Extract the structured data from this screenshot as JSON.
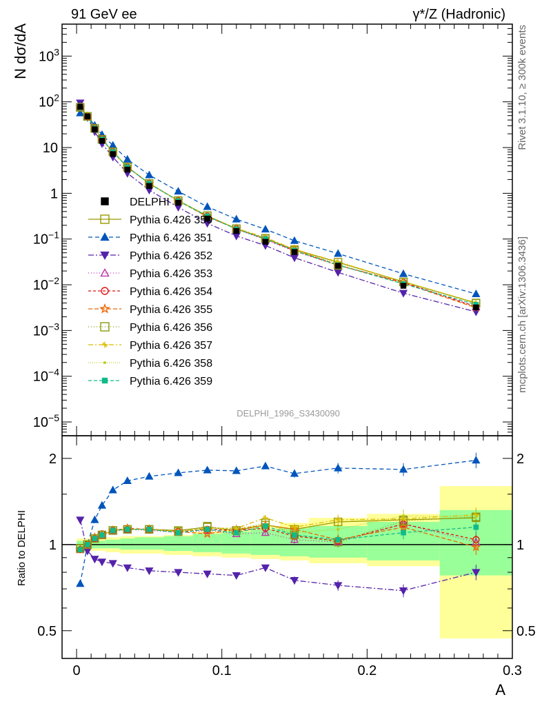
{
  "header": {
    "left": "91 GeV ee",
    "right": "γ*/Z (Hadronic)"
  },
  "side_text": {
    "top": "Rivet 3.1.10, ≥ 300k events",
    "bottom": "mcplots.cern.ch [arXiv:1306.3436]"
  },
  "analysis_label": "DELPHI_1996_S3430090",
  "chart_data": {
    "type": "scatter",
    "top_panel": {
      "ylabel": "N dσ/dA",
      "yscale": "log",
      "ylim": [
        5e-06,
        5000
      ],
      "ytick_labels": [
        "10^-5",
        "10^-4",
        "10^-3",
        "10^-2",
        "10^-1",
        "1",
        "10",
        "10^2",
        "10^3"
      ]
    },
    "ratio_panel": {
      "ylabel": "Ratio to DELPHI",
      "yscale": "log",
      "ylim": [
        0.4,
        2.4
      ],
      "ytick_labels": [
        "0.5",
        "1",
        "2"
      ],
      "reference_line": 1
    },
    "x": {
      "label": "A",
      "xlim": [
        -0.01,
        0.3
      ],
      "tick_labels": [
        "0",
        "0.1",
        "0.2",
        "0.3"
      ],
      "bin_centers": [
        0.0025,
        0.0075,
        0.0125,
        0.0175,
        0.025,
        0.035,
        0.05,
        0.07,
        0.09,
        0.11,
        0.13,
        0.15,
        0.18,
        0.225,
        0.275
      ],
      "bin_edges": [
        0,
        0.005,
        0.01,
        0.015,
        0.02,
        0.03,
        0.04,
        0.06,
        0.08,
        0.1,
        0.12,
        0.14,
        0.16,
        0.2,
        0.25,
        0.3
      ]
    },
    "data": {
      "name": "DELPHI",
      "values": [
        78,
        48,
        25,
        14,
        7.2,
        3.3,
        1.45,
        0.62,
        0.28,
        0.15,
        0.087,
        0.052,
        0.026,
        0.0095,
        0.0032
      ]
    },
    "uncertainty_band": {
      "inner_low": [
        0.97,
        0.97,
        0.97,
        0.97,
        0.97,
        0.96,
        0.96,
        0.95,
        0.94,
        0.93,
        0.92,
        0.91,
        0.9,
        0.88,
        0.78
      ],
      "inner_high": [
        1.03,
        1.03,
        1.03,
        1.03,
        1.04,
        1.05,
        1.06,
        1.07,
        1.09,
        1.11,
        1.13,
        1.14,
        1.16,
        1.2,
        1.32
      ],
      "outer_low": [
        0.95,
        0.95,
        0.95,
        0.95,
        0.94,
        0.93,
        0.93,
        0.92,
        0.91,
        0.9,
        0.89,
        0.88,
        0.86,
        0.84,
        0.47
      ],
      "outer_high": [
        1.05,
        1.05,
        1.05,
        1.05,
        1.06,
        1.07,
        1.07,
        1.08,
        1.11,
        1.13,
        1.16,
        1.19,
        1.24,
        1.28,
        1.6
      ]
    },
    "series": [
      {
        "name": "Pythia 6.426 350",
        "color": "#999900",
        "marker": "square-open",
        "dash": "",
        "ratio": [
          0.97,
          1.0,
          1.05,
          1.08,
          1.12,
          1.13,
          1.13,
          1.12,
          1.15,
          1.12,
          1.17,
          1.13,
          1.2,
          1.22,
          1.24
        ]
      },
      {
        "name": "Pythia 6.426 351",
        "color": "#0055bb",
        "marker": "triangle-up",
        "dash": "6,4",
        "ratio": [
          0.73,
          1.0,
          1.22,
          1.37,
          1.55,
          1.67,
          1.73,
          1.78,
          1.82,
          1.81,
          1.88,
          1.77,
          1.85,
          1.83,
          1.97
        ]
      },
      {
        "name": "Pythia 6.426 352",
        "color": "#5522aa",
        "marker": "triangle-down",
        "dash": "8,3,2,3",
        "ratio": [
          1.22,
          0.95,
          0.89,
          0.87,
          0.86,
          0.83,
          0.81,
          0.8,
          0.79,
          0.78,
          0.83,
          0.75,
          0.72,
          0.69,
          0.8
        ]
      },
      {
        "name": "Pythia 6.426 353",
        "color": "#bb33aa",
        "marker": "triangle-up-open",
        "dash": "1,3",
        "ratio": [
          0.96,
          0.99,
          1.05,
          1.08,
          1.11,
          1.13,
          1.12,
          1.1,
          1.12,
          1.09,
          1.1,
          1.04,
          1.02,
          1.18,
          1.02
        ]
      },
      {
        "name": "Pythia 6.426 354",
        "color": "#dd1111",
        "marker": "circle-open",
        "dash": "4,3",
        "ratio": [
          0.96,
          1.0,
          1.05,
          1.09,
          1.12,
          1.13,
          1.13,
          1.11,
          1.13,
          1.12,
          1.14,
          1.07,
          1.03,
          1.18,
          1.04
        ]
      },
      {
        "name": "Pythia 6.426 355",
        "color": "#ee6600",
        "marker": "star-open",
        "dash": "6,3",
        "ratio": [
          0.96,
          1.0,
          1.06,
          1.08,
          1.12,
          1.14,
          1.13,
          1.11,
          1.09,
          1.13,
          1.17,
          1.13,
          1.04,
          1.15,
          0.98
        ]
      },
      {
        "name": "Pythia 6.426 356",
        "color": "#889911",
        "marker": "square-open",
        "dash": "1,3",
        "ratio": [
          0.97,
          1.0,
          1.05,
          1.08,
          1.12,
          1.13,
          1.13,
          1.11,
          1.16,
          1.12,
          1.19,
          1.08,
          1.02,
          1.21,
          1.25
        ]
      },
      {
        "name": "Pythia 6.426 357",
        "color": "#ddbb00",
        "marker": "tristar",
        "dash": "7,3,2,3",
        "ratio": [
          0.96,
          1.0,
          1.05,
          1.08,
          1.12,
          1.13,
          1.13,
          1.11,
          1.14,
          1.14,
          1.24,
          1.15,
          1.22,
          1.23,
          1.27
        ]
      },
      {
        "name": "Pythia 6.426 358",
        "color": "#bbcc22",
        "marker": "dot",
        "dash": "1,2",
        "ratio": [
          0.96,
          1.0,
          1.05,
          1.08,
          1.12,
          1.13,
          1.13,
          1.11,
          1.14,
          1.14,
          1.18,
          1.1,
          1.13,
          1.26,
          1.25
        ]
      },
      {
        "name": "Pythia 6.426 359",
        "color": "#11bb88",
        "marker": "square",
        "dash": "5,3",
        "ratio": [
          0.96,
          1.0,
          1.05,
          1.08,
          1.12,
          1.13,
          1.13,
          1.1,
          1.13,
          1.1,
          1.16,
          1.08,
          1.04,
          1.1,
          1.15
        ]
      }
    ]
  }
}
